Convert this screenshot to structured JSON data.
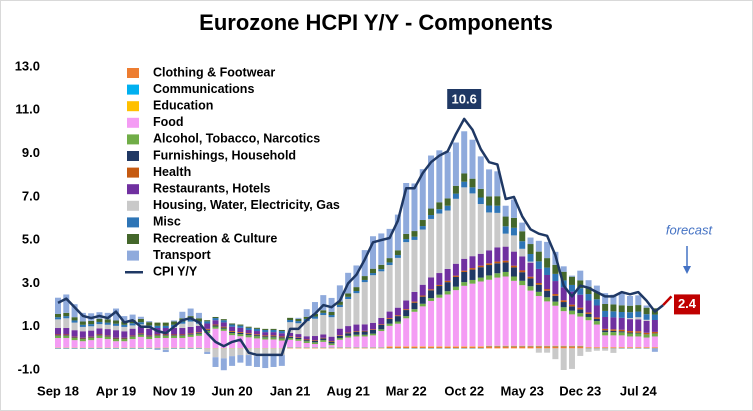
{
  "chart_data": {
    "type": "bar",
    "title": "Eurozone HCPI Y/Y - Components",
    "categories": [
      "Sep 18",
      null,
      null,
      null,
      null,
      null,
      null,
      "Apr 19",
      null,
      null,
      null,
      null,
      null,
      null,
      "Nov 19",
      null,
      null,
      null,
      null,
      null,
      null,
      "Jun 20",
      null,
      null,
      null,
      null,
      null,
      null,
      "Jan 21",
      null,
      null,
      null,
      null,
      null,
      null,
      "Aug 21",
      null,
      null,
      null,
      null,
      null,
      null,
      "Mar 22",
      null,
      null,
      null,
      null,
      null,
      null,
      "Oct 22",
      null,
      null,
      null,
      null,
      null,
      null,
      "May 23",
      null,
      null,
      null,
      null,
      null,
      null,
      "Dec 23",
      null,
      null,
      null,
      null,
      null,
      null,
      "Jul 24",
      null,
      null,
      null,
      null
    ],
    "ylim": [
      -1,
      13
    ],
    "yticks": [
      {
        "value": -1,
        "label": "-1.0"
      },
      {
        "value": 1,
        "label": "1.0"
      },
      {
        "value": 3,
        "label": "3.0"
      },
      {
        "value": 5,
        "label": "5.0"
      },
      {
        "value": 7,
        "label": "7.0"
      },
      {
        "value": 9,
        "label": "9.0"
      },
      {
        "value": 11,
        "label": "11.0"
      },
      {
        "value": 13,
        "label": "13.0"
      }
    ],
    "series": [
      {
        "name": "Clothing & Footwear",
        "color": "#ed7d31",
        "values": [
          0.02,
          0.02,
          0.02,
          0.02,
          0.02,
          0.02,
          0.02,
          0.02,
          0.02,
          0.02,
          0.02,
          0.02,
          0.02,
          0.02,
          0.02,
          0.02,
          0.02,
          0.02,
          0,
          0,
          0,
          0,
          0,
          0,
          0,
          0,
          0,
          0,
          0.03,
          0.03,
          0.03,
          0.03,
          0.03,
          0.03,
          0.03,
          0.03,
          0.03,
          0.03,
          0.03,
          0.03,
          0.08,
          0.08,
          0.08,
          0.08,
          0.08,
          0.08,
          0.08,
          0.08,
          0.08,
          0.08,
          0.08,
          0.08,
          0.1,
          0.1,
          0.1,
          0.1,
          0.1,
          0.1,
          0.1,
          0.1,
          0.1,
          0.1,
          0.1,
          0.1,
          0.04,
          0.04,
          0.04,
          0.04,
          0.04,
          0.04,
          0.04,
          0.04,
          0.04,
          null,
          null
        ]
      },
      {
        "name": "Communications",
        "color": "#00b0f0",
        "values": [
          -0.02,
          -0.02,
          -0.02,
          -0.02,
          -0.02,
          -0.02,
          -0.02,
          -0.02,
          -0.02,
          -0.02,
          -0.02,
          -0.02,
          -0.02,
          -0.02,
          -0.02,
          -0.02,
          -0.02,
          -0.02,
          -0.01,
          -0.01,
          -0.01,
          -0.01,
          -0.01,
          -0.01,
          -0.01,
          -0.01,
          -0.01,
          -0.01,
          0.01,
          0.01,
          0.01,
          0.01,
          0.01,
          0.01,
          0.01,
          0.01,
          0.01,
          0.01,
          0.01,
          0.01,
          -0.01,
          -0.01,
          -0.01,
          -0.01,
          -0.01,
          -0.01,
          -0.01,
          -0.01,
          -0.01,
          -0.01,
          -0.01,
          -0.01,
          0.01,
          0.01,
          0.01,
          0.01,
          0.01,
          0.01,
          0.01,
          0.01,
          0.01,
          0.01,
          0.01,
          0.01,
          -0.01,
          -0.01,
          -0.01,
          -0.01,
          -0.01,
          -0.01,
          -0.01,
          -0.01,
          -0.01,
          null,
          null
        ]
      },
      {
        "name": "Education",
        "color": "#ffc000",
        "values": [
          0.01,
          0.01,
          0.01,
          0.01,
          0.01,
          0.01,
          0.01,
          0.01,
          0.01,
          0.01,
          0.01,
          0.01,
          0.01,
          0.01,
          0.01,
          0.01,
          0.01,
          0.01,
          0.01,
          0.01,
          0.01,
          0.01,
          0.01,
          0.01,
          0.01,
          0.01,
          0.01,
          0.01,
          0.01,
          0.01,
          0.01,
          0.01,
          0.01,
          0.01,
          0.01,
          0.01,
          0.01,
          0.01,
          0.01,
          0.01,
          0.01,
          0.01,
          0.01,
          0.01,
          0.01,
          0.01,
          0.01,
          0.01,
          0.01,
          0.01,
          0.01,
          0.01,
          0.01,
          0.01,
          0.01,
          0.01,
          0.01,
          0.01,
          0.01,
          0.01,
          0.01,
          0.01,
          0.01,
          0.01,
          0.01,
          0.01,
          0.01,
          0.01,
          0.01,
          0.01,
          0.01,
          0.01,
          0.01,
          null,
          null
        ]
      },
      {
        "name": "Food",
        "color": "#f49cf4",
        "values": [
          0.45,
          0.45,
          0.35,
          0.3,
          0.35,
          0.45,
          0.4,
          0.3,
          0.3,
          0.4,
          0.5,
          0.4,
          0.45,
          0.45,
          0.45,
          0.45,
          0.5,
          0.55,
          0.7,
          0.9,
          0.8,
          0.6,
          0.55,
          0.5,
          0.45,
          0.4,
          0.4,
          0.35,
          0.35,
          0.3,
          0.2,
          0.15,
          0.25,
          0.1,
          0.35,
          0.45,
          0.5,
          0.5,
          0.55,
          0.75,
          0.95,
          1.05,
          1.3,
          1.6,
          1.85,
          2.1,
          2.25,
          2.4,
          2.6,
          2.8,
          2.9,
          3.0,
          3.05,
          3.15,
          3.2,
          3.0,
          2.8,
          2.55,
          2.3,
          2.05,
          1.85,
          1.6,
          1.45,
          1.35,
          1.25,
          1.05,
          0.55,
          0.55,
          0.55,
          0.5,
          0.5,
          0.45,
          0.5,
          null,
          null
        ]
      },
      {
        "name": "Alcohol, Tobacco, Narcotics",
        "color": "#70ad47",
        "values": [
          0.1,
          0.1,
          0.1,
          0.1,
          0.1,
          0.1,
          0.1,
          0.1,
          0.1,
          0.1,
          0.1,
          0.1,
          0.1,
          0.1,
          0.1,
          0.1,
          0.1,
          0.1,
          0.1,
          0.1,
          0.1,
          0.1,
          0.1,
          0.1,
          0.1,
          0.1,
          0.1,
          0.1,
          0.08,
          0.08,
          0.08,
          0.08,
          0.08,
          0.08,
          0.08,
          0.08,
          0.08,
          0.08,
          0.08,
          0.08,
          0.1,
          0.1,
          0.1,
          0.12,
          0.12,
          0.13,
          0.14,
          0.15,
          0.16,
          0.17,
          0.17,
          0.18,
          0.2,
          0.2,
          0.21,
          0.2,
          0.2,
          0.2,
          0.19,
          0.19,
          0.19,
          0.18,
          0.17,
          0.16,
          0.15,
          0.16,
          0.15,
          0.15,
          0.14,
          0.14,
          0.14,
          0.13,
          0.13,
          null,
          null
        ]
      },
      {
        "name": "Furnishings, Household",
        "color": "#203864",
        "values": [
          0.03,
          0.03,
          0.03,
          0.03,
          0.03,
          0.03,
          0.03,
          0.03,
          0.03,
          0.03,
          0.03,
          0.03,
          0.03,
          0.03,
          0.03,
          0.03,
          0.03,
          0.03,
          0.05,
          0.05,
          0.05,
          0.05,
          0.05,
          0.05,
          0.05,
          0.05,
          0.05,
          0.05,
          0.05,
          0.05,
          0.05,
          0.06,
          0.08,
          0.08,
          0.1,
          0.12,
          0.14,
          0.15,
          0.17,
          0.2,
          0.22,
          0.25,
          0.28,
          0.3,
          0.33,
          0.36,
          0.4,
          0.42,
          0.45,
          0.47,
          0.48,
          0.48,
          0.48,
          0.46,
          0.44,
          0.42,
          0.4,
          0.36,
          0.33,
          0.3,
          0.27,
          0.24,
          0.2,
          0.17,
          0.14,
          0.1,
          0.08,
          0.06,
          0.05,
          0.04,
          0.03,
          0.02,
          0.01,
          null,
          null
        ]
      },
      {
        "name": "Health",
        "color": "#c55a11",
        "values": [
          0.03,
          0.03,
          0.03,
          0.03,
          0.03,
          0.03,
          0.03,
          0.03,
          0.03,
          0.03,
          0.03,
          0.03,
          0.03,
          0.03,
          0.03,
          0.03,
          0.03,
          0.03,
          0.04,
          0.04,
          0.04,
          0.04,
          0.04,
          0.04,
          0.04,
          0.04,
          0.04,
          0.04,
          0.03,
          0.03,
          0.03,
          0.03,
          0.03,
          0.03,
          0.03,
          0.03,
          0.03,
          0.03,
          0.03,
          0.03,
          0.04,
          0.04,
          0.04,
          0.05,
          0.05,
          0.05,
          0.05,
          0.06,
          0.06,
          0.06,
          0.07,
          0.07,
          0.08,
          0.08,
          0.08,
          0.08,
          0.08,
          0.08,
          0.08,
          0.08,
          0.08,
          0.08,
          0.08,
          0.08,
          0.07,
          0.07,
          0.07,
          0.07,
          0.07,
          0.07,
          0.07,
          0.07,
          0.07,
          null,
          null
        ]
      },
      {
        "name": "Restaurants, Hotels",
        "color": "#7030a0",
        "values": [
          0.3,
          0.3,
          0.3,
          0.3,
          0.28,
          0.28,
          0.3,
          0.35,
          0.3,
          0.32,
          0.32,
          0.32,
          0.3,
          0.3,
          0.3,
          0.3,
          0.3,
          0.3,
          0.25,
          0.2,
          0.2,
          0.2,
          0.2,
          0.15,
          0.15,
          0.15,
          0.15,
          0.15,
          0.15,
          0.15,
          0.15,
          0.2,
          0.15,
          0.2,
          0.3,
          0.3,
          0.3,
          0.3,
          0.3,
          0.3,
          0.3,
          0.35,
          0.4,
          0.45,
          0.5,
          0.55,
          0.55,
          0.55,
          0.55,
          0.55,
          0.55,
          0.55,
          0.6,
          0.65,
          0.65,
          0.65,
          0.65,
          0.65,
          0.65,
          0.65,
          0.6,
          0.6,
          0.6,
          0.6,
          0.55,
          0.55,
          0.55,
          0.55,
          0.55,
          0.55,
          0.55,
          0.55,
          0.55,
          null,
          null
        ]
      },
      {
        "name": "Housing, Water, Electricity, Gas",
        "color": "#c9c9c9",
        "values": [
          0.4,
          0.45,
          0.35,
          0.2,
          0.2,
          0.2,
          0.2,
          0.2,
          0.2,
          0.15,
          0.1,
          0.05,
          0.0,
          -0.05,
          0.05,
          0.2,
          0.25,
          0.1,
          -0.15,
          -0.4,
          -0.45,
          -0.35,
          -0.3,
          -0.3,
          -0.35,
          -0.35,
          -0.3,
          -0.3,
          0.5,
          0.5,
          0.7,
          0.8,
          0.9,
          0.9,
          1.0,
          1.25,
          1.45,
          1.95,
          2.2,
          2.15,
          2.15,
          2.3,
          2.7,
          2.4,
          2.55,
          2.7,
          2.75,
          2.7,
          3.0,
          3.3,
          2.9,
          2.3,
          1.75,
          1.6,
          0.6,
          0.75,
          0.35,
          0.05,
          -0.2,
          -0.2,
          -0.5,
          -1.0,
          -0.95,
          -0.35,
          -0.15,
          -0.1,
          -0.1,
          -0.2,
          0.0,
          0.05,
          0.1,
          0.05,
          0.0,
          null,
          null
        ]
      },
      {
        "name": "Misc",
        "color": "#2e75b6",
        "values": [
          0.1,
          0.1,
          0.1,
          0.1,
          0.1,
          0.1,
          0.1,
          0.1,
          0.1,
          0.1,
          0.1,
          0.1,
          0.1,
          0.1,
          0.1,
          0.1,
          0.1,
          0.1,
          0.1,
          0.1,
          0.1,
          0.1,
          0.1,
          0.1,
          0.1,
          0.1,
          0.1,
          0.1,
          0.1,
          0.1,
          0.1,
          0.1,
          0.1,
          0.1,
          0.1,
          0.1,
          0.1,
          0.1,
          0.1,
          0.1,
          0.12,
          0.13,
          0.14,
          0.15,
          0.16,
          0.18,
          0.2,
          0.22,
          0.24,
          0.26,
          0.28,
          0.3,
          0.32,
          0.33,
          0.34,
          0.35,
          0.35,
          0.35,
          0.35,
          0.34,
          0.33,
          0.32,
          0.31,
          0.3,
          0.3,
          0.29,
          0.28,
          0.28,
          0.27,
          0.27,
          0.26,
          0.26,
          0.25,
          null,
          null
        ]
      },
      {
        "name": "Recreation & Culture",
        "color": "#44672b",
        "values": [
          0.15,
          0.15,
          0.15,
          0.15,
          0.15,
          0.15,
          0.15,
          0.15,
          0.15,
          0.15,
          0.15,
          0.15,
          0.15,
          0.15,
          0.15,
          0.15,
          0.15,
          0.15,
          0.05,
          0.05,
          0.05,
          0.05,
          0.05,
          0.05,
          0.05,
          0.05,
          0.05,
          0.05,
          0.1,
          0.1,
          0.1,
          0.12,
          0.12,
          0.14,
          0.15,
          0.16,
          0.18,
          0.18,
          0.2,
          0.2,
          0.2,
          0.22,
          0.24,
          0.26,
          0.28,
          0.3,
          0.32,
          0.34,
          0.36,
          0.38,
          0.4,
          0.4,
          0.42,
          0.44,
          0.45,
          0.46,
          0.46,
          0.46,
          0.45,
          0.44,
          0.42,
          0.4,
          0.38,
          0.36,
          0.34,
          0.33,
          0.32,
          0.32,
          0.31,
          0.3,
          0.3,
          0.3,
          0.29,
          null,
          null
        ]
      },
      {
        "name": "Transport",
        "color": "#8faadc",
        "values": [
          0.75,
          0.85,
          0.6,
          0.4,
          0.35,
          0.3,
          0.3,
          0.55,
          0.25,
          0.25,
          0.1,
          0.05,
          -0.05,
          -0.1,
          0.05,
          0.3,
          0.35,
          0.25,
          -0.1,
          -0.45,
          -0.55,
          -0.45,
          -0.35,
          -0.5,
          -0.5,
          -0.55,
          -0.55,
          -0.5,
          0.0,
          0.05,
          0.35,
          0.55,
          0.7,
          0.65,
          0.75,
          0.95,
          1.0,
          1.2,
          1.5,
          1.45,
          1.35,
          1.65,
          2.35,
          2.2,
          2.35,
          2.45,
          2.4,
          2.15,
          2.0,
          1.95,
          1.8,
          1.5,
          1.25,
          1.15,
          0.5,
          0.85,
          0.4,
          0.3,
          0.5,
          0.75,
          0.6,
          0.25,
          0.05,
          0.45,
          0.3,
          0.3,
          0.5,
          0.45,
          0.55,
          0.45,
          0.45,
          0.1,
          -0.15,
          null,
          null
        ]
      }
    ],
    "line": {
      "name": "CPI Y/Y",
      "color": "#1f3864",
      "values": [
        2.1,
        2.3,
        1.9,
        1.5,
        1.4,
        1.5,
        1.4,
        1.7,
        1.2,
        1.3,
        1.0,
        1.0,
        0.8,
        0.7,
        1.0,
        1.3,
        1.4,
        1.2,
        0.7,
        0.3,
        0.1,
        0.3,
        0.4,
        -0.2,
        -0.3,
        -0.3,
        -0.3,
        -0.3,
        0.9,
        0.9,
        1.3,
        1.6,
        2.0,
        1.9,
        2.2,
        3.0,
        3.4,
        4.1,
        4.9,
        5.0,
        5.1,
        5.9,
        7.4,
        7.4,
        8.1,
        8.6,
        8.9,
        9.1,
        9.9,
        10.6,
        10.1,
        9.2,
        8.6,
        8.5,
        6.9,
        7.0,
        6.1,
        5.5,
        5.3,
        5.2,
        4.3,
        2.9,
        2.4,
        2.9,
        2.8,
        2.6,
        2.4,
        2.4,
        2.6,
        2.5,
        2.6,
        2.2,
        1.7,
        2.0,
        null
      ]
    },
    "forecast": {
      "label": "forecast",
      "value": 2.4,
      "color": "#c00000"
    }
  }
}
